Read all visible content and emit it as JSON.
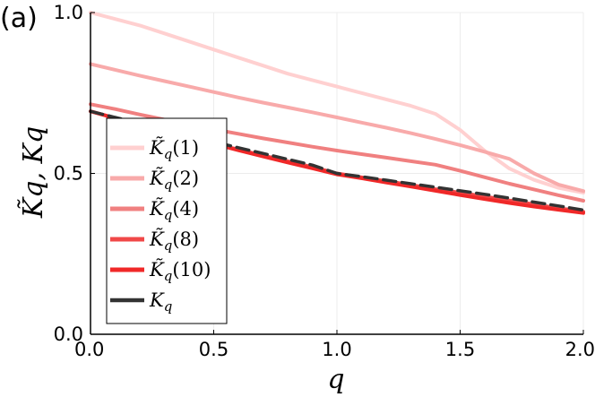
{
  "panel_label": "(a)",
  "chart_data": {
    "type": "line",
    "title": "",
    "xlabel": "q",
    "ylabel": "K̃q, Kq",
    "xlim": [
      0.0,
      2.0
    ],
    "ylim": [
      0.0,
      1.0
    ],
    "xticks": [
      0.0,
      0.5,
      1.0,
      1.5,
      2.0
    ],
    "yticks": [
      0.0,
      0.5,
      1.0
    ],
    "xtick_labels": [
      "0.0",
      "0.5",
      "1.0",
      "1.5",
      "2.0"
    ],
    "ytick_labels": [
      "0.0",
      "0.5",
      "1.0"
    ],
    "grid": true,
    "legend_position": "left",
    "x": [
      0.0,
      0.1,
      0.2,
      0.3,
      0.4,
      0.5,
      0.6,
      0.7,
      0.8,
      0.9,
      1.0,
      1.1,
      1.2,
      1.3,
      1.4,
      1.5,
      1.6,
      1.7,
      1.8,
      1.9,
      2.0
    ],
    "series": [
      {
        "name": "K̃q(1)",
        "label_base": "K̃",
        "label_sub": "q",
        "label_arg": "(1)",
        "color": "#ffd0d0",
        "width": 4,
        "dashed": false,
        "values": [
          1.0,
          0.98,
          0.96,
          0.935,
          0.91,
          0.885,
          0.86,
          0.835,
          0.81,
          0.79,
          0.77,
          0.75,
          0.73,
          0.71,
          0.685,
          0.635,
          0.57,
          0.515,
          0.48,
          0.455,
          0.44
        ]
      },
      {
        "name": "K̃q(2)",
        "label_base": "K̃",
        "label_sub": "q",
        "label_arg": "(2)",
        "color": "#f8aaaa",
        "width": 4,
        "dashed": false,
        "values": [
          0.84,
          0.822,
          0.804,
          0.787,
          0.77,
          0.753,
          0.736,
          0.72,
          0.705,
          0.69,
          0.674,
          0.658,
          0.642,
          0.625,
          0.607,
          0.588,
          0.567,
          0.545,
          0.5,
          0.465,
          0.445
        ]
      },
      {
        "name": "K̃q(4)",
        "label_base": "K̃",
        "label_sub": "q",
        "label_arg": "(4)",
        "color": "#f08080",
        "width": 4,
        "dashed": false,
        "values": [
          0.715,
          0.7,
          0.683,
          0.667,
          0.652,
          0.637,
          0.623,
          0.609,
          0.596,
          0.583,
          0.571,
          0.56,
          0.549,
          0.538,
          0.527,
          0.508,
          0.488,
          0.468,
          0.45,
          0.432,
          0.415
        ]
      },
      {
        "name": "K̃q(8)",
        "label_base": "K̃",
        "label_sub": "q",
        "label_arg": "(8)",
        "color": "#f04848",
        "width": 4,
        "dashed": false,
        "values": [
          0.693,
          0.672,
          0.652,
          0.632,
          0.612,
          0.593,
          0.574,
          0.556,
          0.538,
          0.52,
          0.5,
          0.488,
          0.476,
          0.464,
          0.451,
          0.44,
          0.428,
          0.416,
          0.404,
          0.392,
          0.381
        ]
      },
      {
        "name": "K̃q(10)",
        "label_base": "K̃",
        "label_sub": "q",
        "label_arg": "(10)",
        "color": "#f02828",
        "width": 4,
        "dashed": false,
        "values": [
          0.693,
          0.672,
          0.652,
          0.632,
          0.612,
          0.592,
          0.572,
          0.553,
          0.534,
          0.516,
          0.497,
          0.485,
          0.472,
          0.459,
          0.446,
          0.433,
          0.42,
          0.408,
          0.397,
          0.387,
          0.377
        ]
      },
      {
        "name": "Kq",
        "label_base": "K",
        "label_sub": "q",
        "label_arg": "",
        "color": "#333333",
        "width": 3.5,
        "dashed": true,
        "values": [
          0.693,
          0.674,
          0.655,
          0.636,
          0.617,
          0.598,
          0.58,
          0.562,
          0.544,
          0.526,
          0.5,
          0.49,
          0.479,
          0.468,
          0.457,
          0.446,
          0.435,
          0.423,
          0.411,
          0.399,
          0.386
        ]
      }
    ]
  }
}
